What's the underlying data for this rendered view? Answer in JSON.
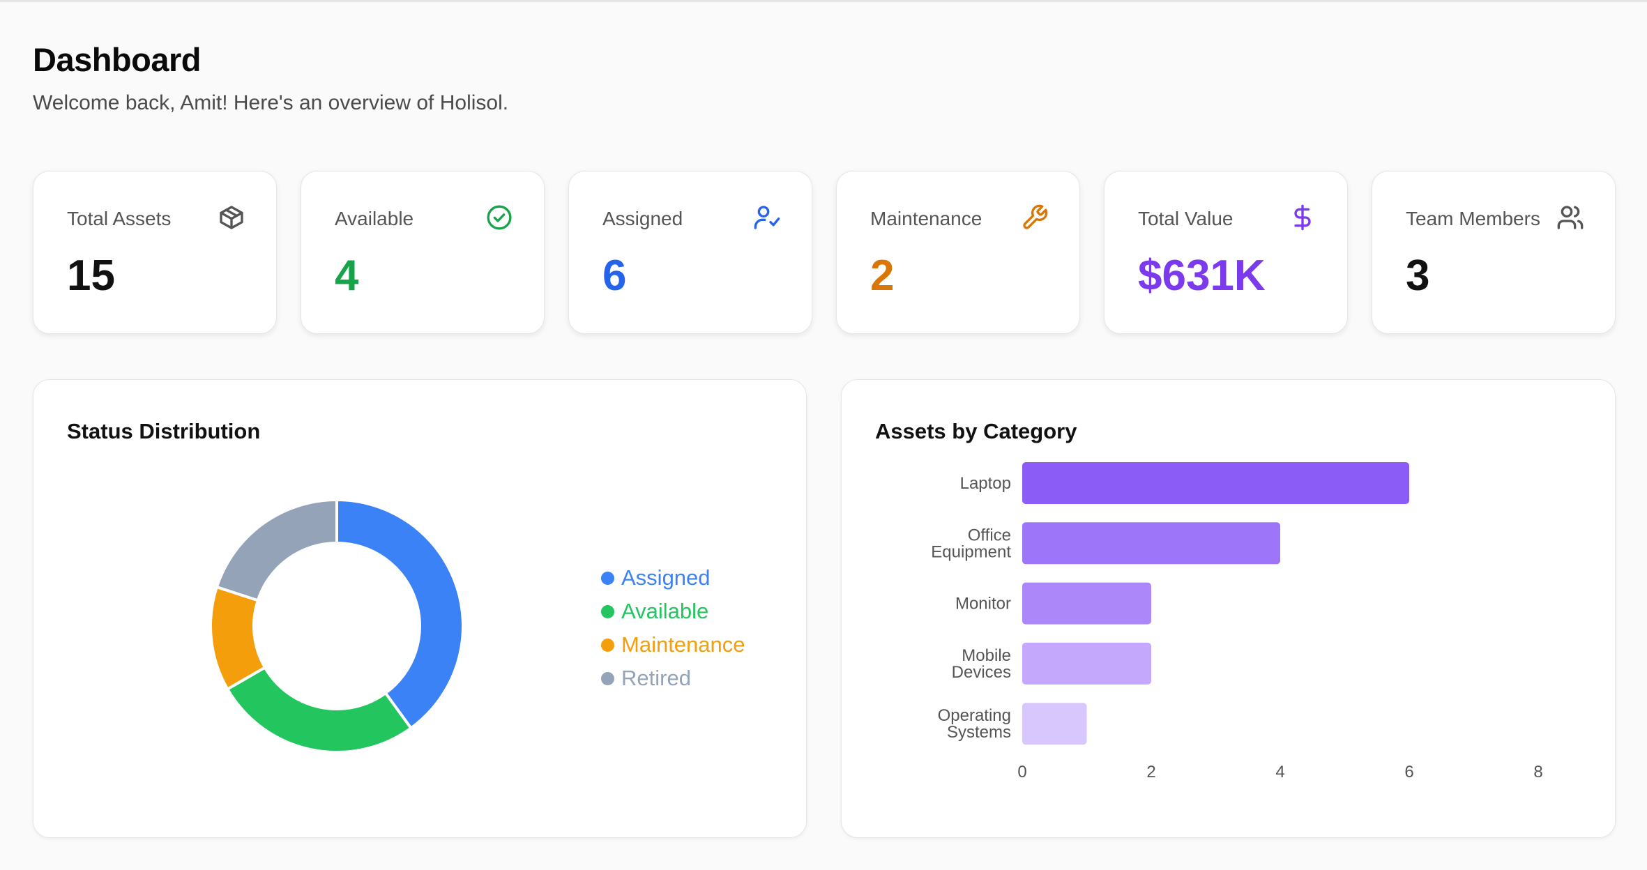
{
  "header": {
    "title": "Dashboard",
    "subtitle": "Welcome back, Amit! Here's an overview of Holisol."
  },
  "stats": [
    {
      "label": "Total Assets",
      "value": "15",
      "icon": "box-icon",
      "color": "#111111"
    },
    {
      "label": "Available",
      "value": "4",
      "icon": "check-circle-icon",
      "color": "#16a34a"
    },
    {
      "label": "Assigned",
      "value": "6",
      "icon": "user-check-icon",
      "color": "#2563eb"
    },
    {
      "label": "Maintenance",
      "value": "2",
      "icon": "wrench-icon",
      "color": "#d97706"
    },
    {
      "label": "Total Value",
      "value": "$631K",
      "icon": "dollar-icon",
      "color": "#7c3aed"
    },
    {
      "label": "Team Members",
      "value": "3",
      "icon": "users-icon",
      "color": "#111111"
    }
  ],
  "status_panel": {
    "title": "Status Distribution"
  },
  "category_panel": {
    "title": "Assets by Category"
  },
  "chart_data": [
    {
      "type": "pie",
      "title": "Status Distribution",
      "categories": [
        "Assigned",
        "Available",
        "Maintenance",
        "Retired"
      ],
      "values": [
        6,
        4,
        2,
        3
      ],
      "colors": [
        "#3b82f6",
        "#22c55e",
        "#f59e0b",
        "#94a3b8"
      ],
      "donut": true,
      "legend": "right"
    },
    {
      "type": "bar",
      "orientation": "horizontal",
      "title": "Assets by Category",
      "categories": [
        [
          "Laptop"
        ],
        [
          "Office",
          "Equipment"
        ],
        [
          "Monitor"
        ],
        [
          "Mobile",
          "Devices"
        ],
        [
          "Operating",
          "Systems"
        ]
      ],
      "values": [
        6,
        4,
        2,
        2,
        1
      ],
      "colors": [
        "#8b5cf6",
        "#9d75f8",
        "#ab87fa",
        "#c4a8fc",
        "#d8c7fd"
      ],
      "xlim": [
        0,
        8
      ],
      "xticks": [
        "0",
        "2",
        "4",
        "6",
        "8"
      ]
    }
  ]
}
